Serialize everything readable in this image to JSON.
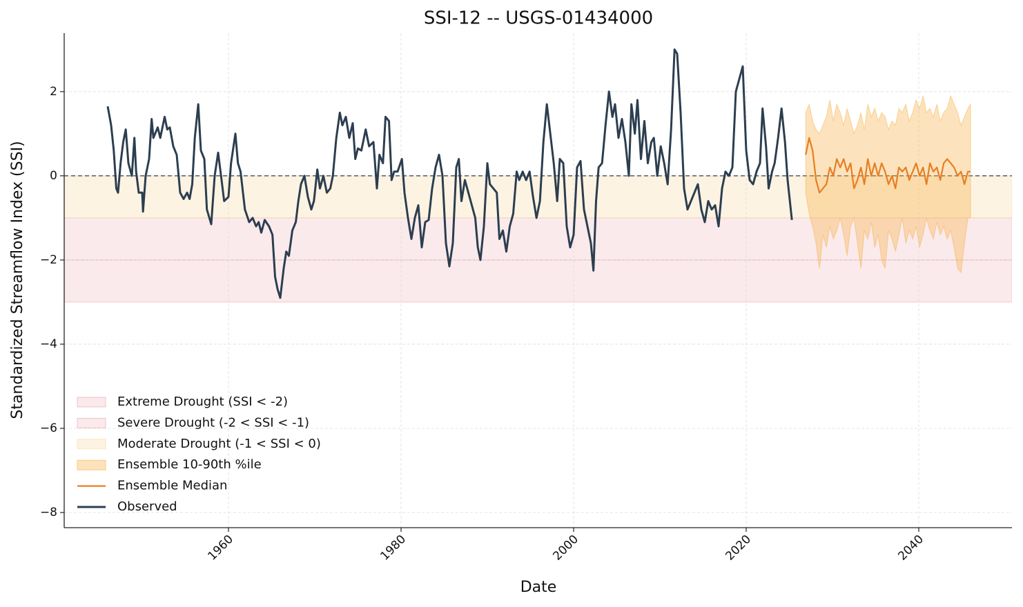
{
  "chart_data": {
    "type": "timeseries",
    "title": "SSI-12 -- USGS-01434000",
    "xlabel": "Date",
    "ylabel": "Standardized Streamflow Index (SSI)",
    "xlim": [
      1940.96,
      2050.8
    ],
    "ylim": [
      -8.36,
      3.39
    ],
    "xticks": [
      1960,
      1980,
      2000,
      2020,
      2040
    ],
    "yticks": [
      {
        "value": -8,
        "label": "−8"
      },
      {
        "value": -6,
        "label": "−6"
      },
      {
        "value": -4,
        "label": "−4"
      },
      {
        "value": -2,
        "label": "−2"
      },
      0,
      2
    ],
    "grid": true,
    "hline": 0,
    "legend": "lower left",
    "bands": [
      {
        "name": "Extreme Drought (SSI < -2)",
        "color": "#e8a0a8",
        "range": [
          -3,
          -2
        ]
      },
      {
        "name": "Severe Drought (-2 < SSI < -1)",
        "color": "#e8a0a8",
        "range": [
          -2,
          -1
        ]
      },
      {
        "name": "Moderate Drought (-1 < SSI < 0)",
        "color": "#fad7a0",
        "range": [
          -1,
          0
        ]
      }
    ],
    "series": [
      {
        "name": "Ensemble 10-90th %ile",
        "kind": "band",
        "color": "#f5b041",
        "x": [
          2026.9,
          2027.3,
          2027.7,
          2028.1,
          2028.5,
          2028.9,
          2029.3,
          2029.7,
          2030.1,
          2030.5,
          2030.9,
          2031.3,
          2031.7,
          2032.1,
          2032.5,
          2032.9,
          2033.3,
          2033.7,
          2034.1,
          2034.5,
          2034.9,
          2035.3,
          2035.7,
          2036.1,
          2036.5,
          2036.9,
          2037.3,
          2037.7,
          2038.1,
          2038.5,
          2038.9,
          2039.3,
          2039.7,
          2040.1,
          2040.5,
          2040.9,
          2041.3,
          2041.7,
          2042.1,
          2042.5,
          2042.9,
          2043.3,
          2043.7,
          2044.1,
          2044.5,
          2044.9,
          2045.3,
          2045.7,
          2046.0
        ],
        "upper": [
          1.5,
          1.7,
          1.3,
          1.1,
          1.0,
          1.2,
          1.4,
          1.8,
          1.3,
          1.7,
          1.5,
          1.2,
          1.6,
          1.3,
          1.0,
          1.2,
          1.5,
          1.1,
          1.7,
          1.4,
          1.6,
          1.3,
          1.5,
          1.4,
          1.1,
          1.3,
          1.2,
          1.6,
          1.5,
          1.7,
          1.3,
          1.5,
          1.8,
          1.6,
          1.9,
          1.5,
          1.6,
          1.4,
          1.7,
          1.3,
          1.5,
          1.6,
          1.9,
          1.7,
          1.5,
          1.2,
          1.4,
          1.6,
          1.7
        ],
        "lower": [
          -0.4,
          -0.9,
          -1.2,
          -1.6,
          -2.2,
          -1.4,
          -1.7,
          -1.2,
          -1.5,
          -1.3,
          -1.0,
          -1.4,
          -1.9,
          -1.2,
          -1.0,
          -1.6,
          -2.2,
          -1.3,
          -1.5,
          -1.1,
          -1.7,
          -1.4,
          -2.0,
          -2.2,
          -1.3,
          -1.5,
          -1.8,
          -1.4,
          -1.0,
          -1.6,
          -1.3,
          -1.5,
          -1.2,
          -1.7,
          -1.4,
          -1.0,
          -1.3,
          -1.5,
          -1.1,
          -1.4,
          -1.2,
          -1.5,
          -1.3,
          -1.7,
          -2.2,
          -2.3,
          -1.6,
          -1.0,
          -1.0
        ]
      },
      {
        "name": "Ensemble Median",
        "kind": "line",
        "color": "#e67e22",
        "width": 2.2,
        "x": [
          2026.9,
          2027.3,
          2027.7,
          2028.1,
          2028.5,
          2028.9,
          2029.3,
          2029.7,
          2030.1,
          2030.5,
          2030.9,
          2031.3,
          2031.7,
          2032.1,
          2032.5,
          2032.9,
          2033.3,
          2033.7,
          2034.1,
          2034.5,
          2034.9,
          2035.3,
          2035.7,
          2036.1,
          2036.5,
          2036.9,
          2037.3,
          2037.7,
          2038.1,
          2038.5,
          2038.9,
          2039.3,
          2039.7,
          2040.1,
          2040.5,
          2040.9,
          2041.3,
          2041.7,
          2042.1,
          2042.5,
          2042.9,
          2043.3,
          2043.7,
          2044.1,
          2044.5,
          2044.9,
          2045.3,
          2045.7,
          2046.0
        ],
        "values": [
          0.5,
          0.9,
          0.6,
          -0.1,
          -0.4,
          -0.3,
          -0.2,
          0.2,
          0.0,
          0.4,
          0.2,
          0.4,
          0.1,
          0.3,
          -0.3,
          -0.1,
          0.2,
          -0.2,
          0.4,
          0.0,
          0.3,
          0.0,
          0.3,
          0.1,
          -0.2,
          0.0,
          -0.3,
          0.2,
          0.1,
          0.2,
          -0.1,
          0.1,
          0.3,
          0.0,
          0.2,
          -0.2,
          0.3,
          0.1,
          0.2,
          -0.1,
          0.3,
          0.4,
          0.3,
          0.2,
          0.0,
          0.1,
          -0.2,
          0.1,
          0.1
        ]
      },
      {
        "name": "Observed",
        "kind": "line",
        "color": "#2c3e50",
        "width": 3,
        "x": [
          1946.0,
          1946.4,
          1946.7,
          1947.0,
          1947.2,
          1947.5,
          1947.8,
          1948.1,
          1948.4,
          1948.8,
          1949.1,
          1949.3,
          1949.6,
          1950.0,
          1950.1,
          1950.4,
          1950.8,
          1951.1,
          1951.3,
          1951.8,
          1952.1,
          1952.6,
          1952.9,
          1953.2,
          1953.6,
          1954.0,
          1954.4,
          1954.8,
          1955.2,
          1955.5,
          1955.8,
          1956.1,
          1956.5,
          1956.8,
          1957.2,
          1957.5,
          1958.0,
          1958.4,
          1958.8,
          1959.2,
          1959.5,
          1960.0,
          1960.3,
          1960.8,
          1961.1,
          1961.4,
          1961.9,
          1962.4,
          1962.8,
          1963.2,
          1963.5,
          1963.8,
          1964.2,
          1964.7,
          1965.1,
          1965.4,
          1965.7,
          1966.0,
          1966.4,
          1966.7,
          1967.0,
          1967.4,
          1967.8,
          1968.1,
          1968.4,
          1968.8,
          1969.2,
          1969.6,
          1969.9,
          1970.3,
          1970.6,
          1971.0,
          1971.4,
          1971.8,
          1972.1,
          1972.5,
          1972.9,
          1973.2,
          1973.6,
          1974.0,
          1974.4,
          1974.7,
          1975.0,
          1975.4,
          1975.9,
          1976.3,
          1976.8,
          1977.2,
          1977.5,
          1977.9,
          1978.2,
          1978.6,
          1978.9,
          1979.2,
          1979.6,
          1980.1,
          1980.4,
          1980.8,
          1981.2,
          1981.6,
          1982.0,
          1982.4,
          1982.8,
          1983.2,
          1983.6,
          1984.0,
          1984.4,
          1984.8,
          1985.2,
          1985.6,
          1986.0,
          1986.4,
          1986.7,
          1987.0,
          1987.4,
          1987.8,
          1988.2,
          1988.6,
          1988.9,
          1989.2,
          1989.6,
          1990.0,
          1990.3,
          1990.7,
          1991.1,
          1991.4,
          1991.8,
          1992.2,
          1992.6,
          1993.0,
          1993.4,
          1993.7,
          1994.1,
          1994.5,
          1994.9,
          1995.3,
          1995.7,
          1996.1,
          1996.5,
          1996.9,
          1997.3,
          1997.7,
          1998.1,
          1998.4,
          1998.8,
          1999.2,
          1999.6,
          2000.0,
          2000.4,
          2000.8,
          2001.2,
          2001.6,
          2002.0,
          2002.3,
          2002.6,
          2002.9,
          2003.3,
          2003.7,
          2004.1,
          2004.5,
          2004.8,
          2005.2,
          2005.6,
          2006.0,
          2006.4,
          2006.7,
          2007.1,
          2007.4,
          2007.8,
          2008.2,
          2008.6,
          2009.0,
          2009.3,
          2009.7,
          2010.1,
          2010.5,
          2010.9,
          2011.3,
          2011.7,
          2012.0,
          2012.4,
          2012.8,
          2013.2,
          2013.6,
          2014.0,
          2014.4,
          2014.8,
          2015.2,
          2015.6,
          2016.0,
          2016.4,
          2016.8,
          2017.2,
          2017.6,
          2018.0,
          2018.4,
          2018.8,
          2019.2,
          2019.6,
          2020.0,
          2020.4,
          2020.8,
          2021.2,
          2021.6,
          2021.9,
          2022.3,
          2022.6,
          2023.0,
          2023.3,
          2023.7,
          2024.1,
          2024.5,
          2024.8,
          2025.3
        ],
        "values": [
          1.65,
          1.2,
          0.6,
          -0.3,
          -0.4,
          0.3,
          0.8,
          1.1,
          0.3,
          0.0,
          0.9,
          0.1,
          -0.4,
          -0.4,
          -0.85,
          0.0,
          0.4,
          1.35,
          0.9,
          1.15,
          0.9,
          1.4,
          1.1,
          1.15,
          0.7,
          0.5,
          -0.4,
          -0.55,
          -0.4,
          -0.55,
          -0.2,
          0.9,
          1.7,
          0.6,
          0.4,
          -0.8,
          -1.15,
          0.0,
          0.55,
          -0.1,
          -0.6,
          -0.5,
          0.3,
          1.0,
          0.3,
          0.1,
          -0.8,
          -1.1,
          -1.0,
          -1.2,
          -1.1,
          -1.35,
          -1.05,
          -1.2,
          -1.4,
          -2.4,
          -2.7,
          -2.9,
          -2.2,
          -1.8,
          -1.9,
          -1.3,
          -1.1,
          -0.6,
          -0.2,
          0.0,
          -0.5,
          -0.8,
          -0.6,
          0.15,
          -0.3,
          0.0,
          -0.4,
          -0.3,
          0.0,
          0.9,
          1.5,
          1.2,
          1.4,
          0.9,
          1.25,
          0.4,
          0.65,
          0.6,
          1.1,
          0.7,
          0.8,
          -0.3,
          0.5,
          0.3,
          1.4,
          1.3,
          -0.1,
          0.1,
          0.1,
          0.4,
          -0.4,
          -1.0,
          -1.5,
          -1.0,
          -0.7,
          -1.7,
          -1.1,
          -1.05,
          -0.3,
          0.2,
          0.5,
          0.0,
          -1.6,
          -2.15,
          -1.6,
          0.2,
          0.4,
          -0.6,
          -0.1,
          -0.4,
          -0.7,
          -1.0,
          -1.7,
          -2.0,
          -1.2,
          0.3,
          -0.2,
          -0.3,
          -0.4,
          -1.5,
          -1.3,
          -1.8,
          -1.2,
          -0.9,
          0.1,
          -0.1,
          0.1,
          -0.1,
          0.1,
          -0.5,
          -1.0,
          -0.6,
          0.8,
          1.7,
          1.0,
          0.3,
          -0.6,
          0.4,
          0.3,
          -1.2,
          -1.7,
          -1.4,
          0.2,
          0.35,
          -0.8,
          -1.2,
          -1.6,
          -2.25,
          -0.6,
          0.2,
          0.3,
          1.2,
          2.0,
          1.4,
          1.7,
          0.9,
          1.35,
          0.8,
          0.0,
          1.7,
          1.0,
          1.8,
          0.4,
          1.3,
          0.3,
          0.8,
          0.9,
          0.0,
          0.7,
          0.3,
          -0.2,
          1.1,
          3.0,
          2.9,
          1.5,
          -0.3,
          -0.8,
          -0.6,
          -0.4,
          -0.2,
          -0.8,
          -1.1,
          -0.6,
          -0.8,
          -0.7,
          -1.2,
          -0.3,
          0.1,
          0.0,
          0.2,
          2.0,
          2.3,
          2.6,
          0.6,
          -0.1,
          -0.2,
          0.1,
          0.3,
          1.6,
          0.7,
          -0.3,
          0.1,
          0.3,
          0.9,
          1.6,
          0.8,
          -0.1,
          -1.05
        ]
      }
    ]
  }
}
